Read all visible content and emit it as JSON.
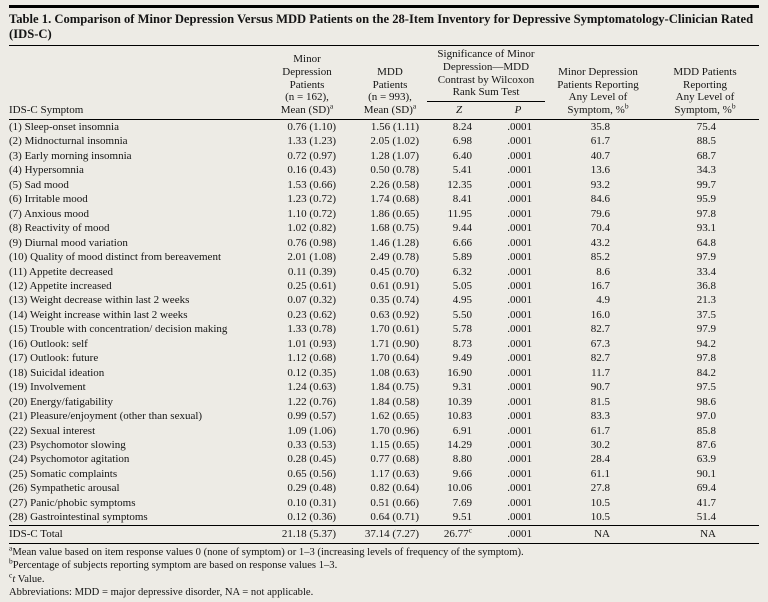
{
  "title": "Table 1. Comparison of Minor Depression Versus MDD Patients on the 28-Item Inventory for Depressive Symptomatology-Clinician Rated (IDS-C)",
  "table": {
    "col_headers": {
      "symptom": "IDS-C Symptom",
      "minor_mean": "Minor\nDepression\nPatients\n(n = 162),\nMean (SD)",
      "minor_mean_sup": "a",
      "mdd_mean": "MDD\nPatients\n(n = 993),\nMean (SD)",
      "mdd_mean_sup": "a",
      "sig_group": "Significance of Minor\nDepression—MDD\nContrast by Wilcoxon\nRank Sum Test",
      "z": "Z",
      "p": "P",
      "minor_pct": "Minor Depression\nPatients Reporting\nAny Level of\nSymptom, %",
      "minor_pct_sup": "b",
      "mdd_pct": "MDD Patients\nReporting\nAny Level of\nSymptom, %",
      "mdd_pct_sup": "b"
    },
    "rows": [
      {
        "symptom": "(1) Sleep-onset insomnia",
        "minor_mean": "0.76 (1.10)",
        "mdd_mean": "1.56 (1.11)",
        "z": "8.24",
        "p": ".0001",
        "minor_pct": "35.8",
        "mdd_pct": "75.4"
      },
      {
        "symptom": "(2) Midnocturnal insomnia",
        "minor_mean": "1.33 (1.23)",
        "mdd_mean": "2.05 (1.02)",
        "z": "6.98",
        "p": ".0001",
        "minor_pct": "61.7",
        "mdd_pct": "88.5"
      },
      {
        "symptom": "(3) Early morning insomnia",
        "minor_mean": "0.72 (0.97)",
        "mdd_mean": "1.28 (1.07)",
        "z": "6.40",
        "p": ".0001",
        "minor_pct": "40.7",
        "mdd_pct": "68.7"
      },
      {
        "symptom": "(4) Hypersomnia",
        "minor_mean": "0.16 (0.43)",
        "mdd_mean": "0.50 (0.78)",
        "z": "5.41",
        "p": ".0001",
        "minor_pct": "13.6",
        "mdd_pct": "34.3"
      },
      {
        "symptom": "(5) Sad mood",
        "minor_mean": "1.53 (0.66)",
        "mdd_mean": "2.26 (0.58)",
        "z": "12.35",
        "p": ".0001",
        "minor_pct": "93.2",
        "mdd_pct": "99.7"
      },
      {
        "symptom": "(6) Irritable mood",
        "minor_mean": "1.23 (0.72)",
        "mdd_mean": "1.74 (0.68)",
        "z": "8.41",
        "p": ".0001",
        "minor_pct": "84.6",
        "mdd_pct": "95.9"
      },
      {
        "symptom": "(7) Anxious mood",
        "minor_mean": "1.10 (0.72)",
        "mdd_mean": "1.86 (0.65)",
        "z": "11.95",
        "p": ".0001",
        "minor_pct": "79.6",
        "mdd_pct": "97.8"
      },
      {
        "symptom": "(8) Reactivity of mood",
        "minor_mean": "1.02 (0.82)",
        "mdd_mean": "1.68 (0.75)",
        "z": "9.44",
        "p": ".0001",
        "minor_pct": "70.4",
        "mdd_pct": "93.1"
      },
      {
        "symptom": "(9) Diurnal mood variation",
        "minor_mean": "0.76 (0.98)",
        "mdd_mean": "1.46 (1.28)",
        "z": "6.66",
        "p": ".0001",
        "minor_pct": "43.2",
        "mdd_pct": "64.8"
      },
      {
        "symptom": "(10) Quality of mood distinct from bereavement",
        "minor_mean": "2.01 (1.08)",
        "mdd_mean": "2.49 (0.78)",
        "z": "5.89",
        "p": ".0001",
        "minor_pct": "85.2",
        "mdd_pct": "97.9"
      },
      {
        "symptom": "(11) Appetite decreased",
        "minor_mean": "0.11 (0.39)",
        "mdd_mean": "0.45 (0.70)",
        "z": "6.32",
        "p": ".0001",
        "minor_pct": "8.6",
        "mdd_pct": "33.4"
      },
      {
        "symptom": "(12) Appetite increased",
        "minor_mean": "0.25 (0.61)",
        "mdd_mean": "0.61 (0.91)",
        "z": "5.05",
        "p": ".0001",
        "minor_pct": "16.7",
        "mdd_pct": "36.8"
      },
      {
        "symptom": "(13) Weight decrease within last 2 weeks",
        "minor_mean": "0.07 (0.32)",
        "mdd_mean": "0.35 (0.74)",
        "z": "4.95",
        "p": ".0001",
        "minor_pct": "4.9",
        "mdd_pct": "21.3"
      },
      {
        "symptom": "(14) Weight increase within last 2 weeks",
        "minor_mean": "0.23 (0.62)",
        "mdd_mean": "0.63 (0.92)",
        "z": "5.50",
        "p": ".0001",
        "minor_pct": "16.0",
        "mdd_pct": "37.5"
      },
      {
        "symptom": "(15) Trouble with concentration/ decision making",
        "minor_mean": "1.33 (0.78)",
        "mdd_mean": "1.70 (0.61)",
        "z": "5.78",
        "p": ".0001",
        "minor_pct": "82.7",
        "mdd_pct": "97.9"
      },
      {
        "symptom": "(16) Outlook: self",
        "minor_mean": "1.01 (0.93)",
        "mdd_mean": "1.71 (0.90)",
        "z": "8.73",
        "p": ".0001",
        "minor_pct": "67.3",
        "mdd_pct": "94.2"
      },
      {
        "symptom": "(17) Outlook: future",
        "minor_mean": "1.12 (0.68)",
        "mdd_mean": "1.70 (0.64)",
        "z": "9.49",
        "p": ".0001",
        "minor_pct": "82.7",
        "mdd_pct": "97.8"
      },
      {
        "symptom": "(18) Suicidal ideation",
        "minor_mean": "0.12 (0.35)",
        "mdd_mean": "1.08 (0.63)",
        "z": "16.90",
        "p": ".0001",
        "minor_pct": "11.7",
        "mdd_pct": "84.2"
      },
      {
        "symptom": "(19) Involvement",
        "minor_mean": "1.24 (0.63)",
        "mdd_mean": "1.84 (0.75)",
        "z": "9.31",
        "p": ".0001",
        "minor_pct": "90.7",
        "mdd_pct": "97.5"
      },
      {
        "symptom": "(20) Energy/fatigability",
        "minor_mean": "1.22 (0.76)",
        "mdd_mean": "1.84 (0.58)",
        "z": "10.39",
        "p": ".0001",
        "minor_pct": "81.5",
        "mdd_pct": "98.6"
      },
      {
        "symptom": "(21) Pleasure/enjoyment (other than sexual)",
        "minor_mean": "0.99 (0.57)",
        "mdd_mean": "1.62 (0.65)",
        "z": "10.83",
        "p": ".0001",
        "minor_pct": "83.3",
        "mdd_pct": "97.0"
      },
      {
        "symptom": "(22) Sexual interest",
        "minor_mean": "1.09 (1.06)",
        "mdd_mean": "1.70 (0.96)",
        "z": "6.91",
        "p": ".0001",
        "minor_pct": "61.7",
        "mdd_pct": "85.8"
      },
      {
        "symptom": "(23) Psychomotor slowing",
        "minor_mean": "0.33 (0.53)",
        "mdd_mean": "1.15 (0.65)",
        "z": "14.29",
        "p": ".0001",
        "minor_pct": "30.2",
        "mdd_pct": "87.6"
      },
      {
        "symptom": "(24) Psychomotor agitation",
        "minor_mean": "0.28 (0.45)",
        "mdd_mean": "0.77 (0.68)",
        "z": "8.80",
        "p": ".0001",
        "minor_pct": "28.4",
        "mdd_pct": "63.9"
      },
      {
        "symptom": "(25) Somatic complaints",
        "minor_mean": "0.65 (0.56)",
        "mdd_mean": "1.17 (0.63)",
        "z": "9.66",
        "p": ".0001",
        "minor_pct": "61.1",
        "mdd_pct": "90.1"
      },
      {
        "symptom": "(26) Sympathetic arousal",
        "minor_mean": "0.29 (0.48)",
        "mdd_mean": "0.82 (0.64)",
        "z": "10.06",
        "p": ".0001",
        "minor_pct": "27.8",
        "mdd_pct": "69.4"
      },
      {
        "symptom": "(27) Panic/phobic symptoms",
        "minor_mean": "0.10 (0.31)",
        "mdd_mean": "0.51 (0.66)",
        "z": "7.69",
        "p": ".0001",
        "minor_pct": "10.5",
        "mdd_pct": "41.7"
      },
      {
        "symptom": "(28) Gastrointestinal symptoms",
        "minor_mean": "0.12 (0.36)",
        "mdd_mean": "0.64 (0.71)",
        "z": "9.51",
        "p": ".0001",
        "minor_pct": "10.5",
        "mdd_pct": "51.4"
      }
    ],
    "total_row": {
      "symptom": "IDS-C Total",
      "minor_mean": "21.18 (5.37)",
      "mdd_mean": "37.14 (7.27)",
      "z": "26.77",
      "z_sup": "c",
      "p": ".0001",
      "minor_pct": "NA",
      "mdd_pct": "NA"
    }
  },
  "footnotes": [
    {
      "marker": "a",
      "text": "Mean value based on item response values 0 (none of symptom) or 1–3 (increasing levels of frequency of the symptom)."
    },
    {
      "marker": "b",
      "text": "Percentage of subjects reporting symptom are based on response values 1–3."
    },
    {
      "marker": "c",
      "italic": "t",
      "text": " Value."
    },
    {
      "marker": "",
      "text": "Abbreviations: MDD = major depressive disorder, NA = not applicable."
    }
  ]
}
